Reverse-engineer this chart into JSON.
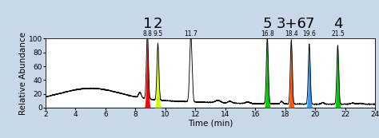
{
  "xlim": [
    2,
    24
  ],
  "ylim": [
    0,
    100
  ],
  "xlabel": "Time (min)",
  "ylabel": "Relative Abundance",
  "fig_bg": "#c8d8e8",
  "plot_bg": "#ffffff",
  "peaks": [
    {
      "x": 8.8,
      "height": 97,
      "sigma": 0.09,
      "color": "#ff0000",
      "label_time": "8.8",
      "label_num": "1"
    },
    {
      "x": 9.5,
      "height": 82,
      "sigma": 0.09,
      "color": "#ccff00",
      "label_time": "9.5",
      "label_num": "2"
    },
    {
      "x": 11.7,
      "height": 96,
      "sigma": 0.11,
      "color": null,
      "label_time": "11.7",
      "label_num": ""
    },
    {
      "x": 16.8,
      "height": 97,
      "sigma": 0.09,
      "color": "#00cc00",
      "label_time": "16.8",
      "label_num": "5"
    },
    {
      "x": 18.4,
      "height": 93,
      "sigma": 0.09,
      "color": "#ff5500",
      "label_time": "18.4",
      "label_num": "3+6"
    },
    {
      "x": 19.6,
      "height": 87,
      "sigma": 0.09,
      "color": "#3399ff",
      "label_time": "19.6",
      "label_num": "7"
    },
    {
      "x": 21.5,
      "height": 85,
      "sigma": 0.09,
      "color": "#00cc00",
      "label_time": "21.5",
      "label_num": "4"
    }
  ],
  "tick_fontsize": 6.5,
  "label_fontsize": 7.5,
  "time_label_fontsize": 5.5,
  "peak_num_fontsize": 13
}
